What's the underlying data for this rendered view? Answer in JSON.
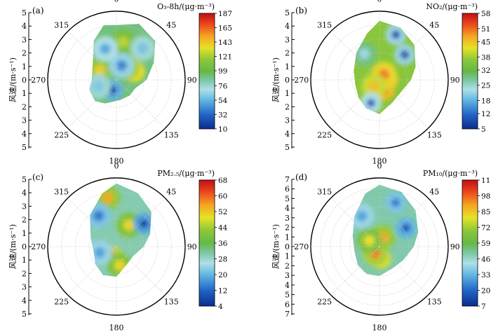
{
  "chart_data": [
    {
      "type": "heatmap",
      "panel_label": "(a)",
      "projection": "polar",
      "colorbar_title": "O₃-8h/(μg·m⁻³)",
      "colorbar_ticks": [
        10,
        32,
        54,
        76,
        99,
        121,
        143,
        165,
        187
      ],
      "angle_ticks": [
        "0",
        "45",
        "90",
        "135",
        "180",
        "225",
        "270",
        "315"
      ],
      "radial_label": "风速/(m·s⁻¹)",
      "radial_ticks": [
        0,
        1,
        2,
        3,
        4,
        5
      ],
      "rlim": [
        0,
        5
      ],
      "data_boundary": [
        [
          0,
          4.0
        ],
        [
          22,
          4.4
        ],
        [
          45,
          4.0
        ],
        [
          65,
          3.0
        ],
        [
          90,
          2.2
        ],
        [
          115,
          1.5
        ],
        [
          140,
          1.5
        ],
        [
          170,
          1.5
        ],
        [
          205,
          1.9
        ],
        [
          225,
          2.2
        ],
        [
          250,
          2.1
        ],
        [
          270,
          1.8
        ],
        [
          300,
          2.0
        ],
        [
          330,
          3.3
        ],
        [
          347,
          4.1
        ]
      ],
      "hotspots": [
        {
          "angle": 65,
          "r": 1.45,
          "value": 180
        },
        {
          "angle": 40,
          "r": 1.2,
          "value": 150
        },
        {
          "angle": 10,
          "r": 2.8,
          "value": 125
        },
        {
          "angle": 300,
          "r": 1.4,
          "value": 140
        },
        {
          "angle": 200,
          "r": 0.8,
          "value": 15
        },
        {
          "angle": 20,
          "r": 1.1,
          "value": 40
        },
        {
          "angle": 340,
          "r": 2.4,
          "value": 50
        },
        {
          "angle": 250,
          "r": 1.4,
          "value": 60
        },
        {
          "angle": 40,
          "r": 3.0,
          "value": 58
        }
      ],
      "background_value": 90
    },
    {
      "type": "heatmap",
      "panel_label": "(b)",
      "projection": "polar",
      "colorbar_title": "NO₂/(μg·m⁻³)",
      "colorbar_ticks": [
        5,
        12,
        18,
        25,
        32,
        38,
        45,
        51,
        58
      ],
      "angle_ticks": [
        "0",
        "45",
        "90",
        "135",
        "180",
        "225",
        "270",
        "315"
      ],
      "radial_label": "风速/(m·s⁻¹)",
      "radial_ticks": [
        0,
        1,
        2,
        3,
        4,
        5
      ],
      "rlim": [
        0,
        5
      ],
      "data_boundary": [
        [
          0,
          4.3
        ],
        [
          22,
          4.1
        ],
        [
          45,
          3.6
        ],
        [
          70,
          2.8
        ],
        [
          90,
          2.3
        ],
        [
          120,
          1.8
        ],
        [
          150,
          1.9
        ],
        [
          180,
          2.5
        ],
        [
          205,
          2.3
        ],
        [
          230,
          2.0
        ],
        [
          260,
          1.8
        ],
        [
          290,
          2.0
        ],
        [
          320,
          2.6
        ],
        [
          345,
          3.5
        ]
      ],
      "hotspots": [
        {
          "angle": 155,
          "r": 0.8,
          "value": 55
        },
        {
          "angle": 90,
          "r": 0.6,
          "value": 52
        },
        {
          "angle": 40,
          "r": 0.5,
          "value": 50
        },
        {
          "angle": 220,
          "r": 0.6,
          "value": 45
        },
        {
          "angle": 45,
          "r": 2.6,
          "value": 7
        },
        {
          "angle": 20,
          "r": 3.5,
          "value": 8
        },
        {
          "angle": 200,
          "r": 1.8,
          "value": 10
        },
        {
          "angle": 330,
          "r": 2.2,
          "value": 22
        }
      ],
      "background_value": 36
    },
    {
      "type": "heatmap",
      "panel_label": "(c)",
      "projection": "polar",
      "colorbar_title": "PM₂.₅/(μg·m⁻³)",
      "colorbar_ticks": [
        4,
        12,
        20,
        28,
        36,
        44,
        52,
        60,
        68
      ],
      "angle_ticks": [
        "0",
        "45",
        "90",
        "135",
        "180",
        "225",
        "270",
        "315"
      ],
      "radial_label": "风速/(m·s⁻¹)",
      "radial_ticks": [
        0,
        1,
        2,
        3,
        4,
        5
      ],
      "rlim": [
        0,
        5
      ],
      "data_boundary": [
        [
          0,
          4.6
        ],
        [
          22,
          4.2
        ],
        [
          45,
          3.6
        ],
        [
          70,
          2.6
        ],
        [
          90,
          2.0
        ],
        [
          120,
          1.4
        ],
        [
          150,
          1.5
        ],
        [
          180,
          2.2
        ],
        [
          205,
          2.3
        ],
        [
          230,
          2.0
        ],
        [
          260,
          1.7
        ],
        [
          290,
          2.0
        ],
        [
          320,
          3.0
        ],
        [
          345,
          4.0
        ]
      ],
      "hotspots": [
        {
          "angle": 350,
          "r": 3.6,
          "value": 55
        },
        {
          "angle": 200,
          "r": 0.8,
          "value": 62
        },
        {
          "angle": 170,
          "r": 1.4,
          "value": 50
        },
        {
          "angle": 30,
          "r": 1.8,
          "value": 50
        },
        {
          "angle": 50,
          "r": 2.6,
          "value": 6
        },
        {
          "angle": 330,
          "r": 2.6,
          "value": 14
        },
        {
          "angle": 250,
          "r": 1.3,
          "value": 18
        }
      ],
      "background_value": 30
    },
    {
      "type": "heatmap",
      "panel_label": "(d)",
      "projection": "polar",
      "colorbar_title": "PM₁₀/(μg·m⁻³)",
      "colorbar_ticks": [
        7,
        20,
        33,
        46,
        59,
        72,
        85,
        98,
        111
      ],
      "angle_ticks": [
        "0",
        "45",
        "90",
        "135",
        "180",
        "225",
        "270",
        "315"
      ],
      "radial_label": "风速/(m·s⁻¹)",
      "radial_ticks": [
        0,
        1,
        2,
        3,
        4,
        5,
        6,
        7
      ],
      "rlim": [
        0,
        7
      ],
      "data_boundary": [
        [
          0,
          6.3
        ],
        [
          22,
          6.0
        ],
        [
          45,
          5.2
        ],
        [
          70,
          4.2
        ],
        [
          90,
          3.5
        ],
        [
          120,
          2.8
        ],
        [
          150,
          2.6
        ],
        [
          180,
          3.0
        ],
        [
          205,
          3.1
        ],
        [
          230,
          2.9
        ],
        [
          260,
          2.6
        ],
        [
          290,
          2.9
        ],
        [
          320,
          4.0
        ],
        [
          345,
          5.6
        ]
      ],
      "hotspots": [
        {
          "angle": 175,
          "r": 1.2,
          "value": 108
        },
        {
          "angle": 210,
          "r": 0.8,
          "value": 95
        },
        {
          "angle": 20,
          "r": 1.0,
          "value": 90
        },
        {
          "angle": 300,
          "r": 1.2,
          "value": 80
        },
        {
          "angle": 55,
          "r": 3.3,
          "value": 15
        },
        {
          "angle": 20,
          "r": 4.8,
          "value": 22
        },
        {
          "angle": 330,
          "r": 3.6,
          "value": 30
        }
      ],
      "background_value": 50
    }
  ]
}
